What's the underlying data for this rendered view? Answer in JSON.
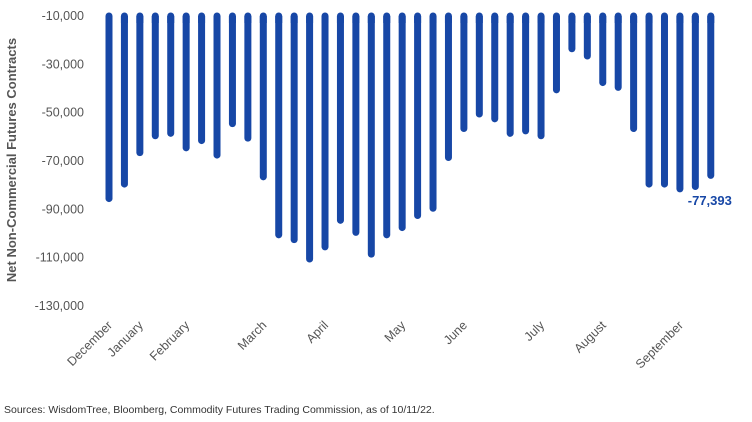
{
  "chart_data": {
    "type": "bar",
    "ylabel": "Net Non-Commercial Futures Contracts",
    "ylim": [
      -130000,
      -10000
    ],
    "yticks": [
      -10000,
      -30000,
      -50000,
      -70000,
      -90000,
      -110000,
      -130000
    ],
    "ytick_labels": [
      "-10,000",
      "-30,000",
      "-50,000",
      "-70,000",
      "-90,000",
      "-110,000",
      "-130,000"
    ],
    "xtick_labels": [
      "December",
      "January",
      "February",
      "March",
      "April",
      "May",
      "June",
      "July",
      "August",
      "September"
    ],
    "xtick_bar_index": [
      0,
      2,
      5,
      10,
      14,
      19,
      23,
      28,
      32,
      37
    ],
    "values": [
      -87000,
      -81000,
      -68000,
      -61000,
      -60000,
      -66000,
      -63000,
      -69000,
      -56000,
      -62000,
      -78000,
      -102000,
      -104000,
      -112000,
      -107000,
      -96000,
      -101000,
      -110000,
      -102000,
      -99000,
      -94000,
      -91000,
      -70000,
      -58000,
      -52000,
      -54000,
      -60000,
      -59000,
      -61000,
      -42000,
      -25000,
      -28000,
      -39000,
      -41000,
      -58000,
      -81000,
      -81000,
      -83000,
      -82000,
      -77393
    ],
    "bar_color": "#1747a6",
    "grid": false,
    "annotations": [
      {
        "text": "-77,393",
        "bar_index": 39
      }
    ]
  },
  "source": "Sources: WisdomTree, Bloomberg, Commodity Futures Trading Commission, as of 10/11/22."
}
